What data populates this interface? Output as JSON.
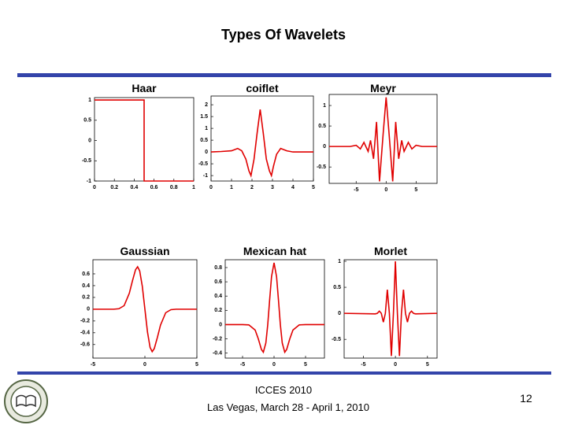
{
  "title": "Types Of Wavelets",
  "chart_data": [
    {
      "type": "line",
      "title": "Haar",
      "color": "#e00000",
      "x": [
        0,
        0.5,
        0.5,
        1
      ],
      "values": [
        1,
        1,
        -1,
        -1
      ],
      "xlim": [
        0,
        1
      ],
      "ylim": [
        -1,
        1.06
      ],
      "xticks": [
        0,
        0.2,
        0.4,
        0.6,
        0.8,
        1
      ],
      "yticks": [
        -1,
        -0.5,
        0,
        0.5,
        1
      ]
    },
    {
      "type": "line",
      "title": "coiflet",
      "color": "#e00000",
      "x": [
        0,
        0.5,
        1,
        1.3,
        1.5,
        1.7,
        1.85,
        1.95,
        2.1,
        2.25,
        2.4,
        2.55,
        2.7,
        2.85,
        2.95,
        3.05,
        3.2,
        3.4,
        3.7,
        4,
        4.5,
        5
      ],
      "values": [
        0,
        0.02,
        0.05,
        0.15,
        0.05,
        -0.3,
        -0.8,
        -1,
        -0.3,
        0.8,
        1.8,
        0.8,
        -0.3,
        -0.8,
        -1,
        -0.6,
        -0.1,
        0.15,
        0.05,
        0,
        0,
        0
      ],
      "xlim": [
        0,
        5
      ],
      "ylim": [
        -1.23,
        2.37
      ],
      "xticks": [
        0,
        1,
        2,
        3,
        4,
        5
      ],
      "yticks": [
        -1,
        -0.5,
        0,
        0.5,
        1,
        1.5,
        2
      ]
    },
    {
      "type": "line",
      "title": "Meyr",
      "color": "#e00000",
      "x": [
        -9.5,
        -6,
        -5,
        -4.3,
        -3.7,
        -3,
        -2.6,
        -2.1,
        -1.6,
        -1.1,
        -0.5,
        0,
        0.5,
        1.1,
        1.6,
        2.1,
        2.6,
        3,
        3.7,
        4.3,
        5,
        6,
        8.5
      ],
      "values": [
        0,
        0,
        0.03,
        -0.06,
        0.1,
        -0.12,
        0.15,
        -0.3,
        0.6,
        -0.85,
        0.3,
        1.2,
        0.3,
        -0.85,
        0.6,
        -0.3,
        0.15,
        -0.12,
        0.1,
        -0.06,
        0.03,
        0,
        0
      ],
      "xlim": [
        -9.5,
        8.5
      ],
      "ylim": [
        -0.9,
        1.27
      ],
      "xticks": [
        -5,
        0,
        5
      ],
      "yticks": [
        -0.5,
        0,
        0.5,
        1
      ]
    },
    {
      "type": "line",
      "title": "Gaussian",
      "color": "#e00000",
      "x": [
        -5,
        -3,
        -2.5,
        -2,
        -1.5,
        -1.2,
        -0.9,
        -0.7,
        -0.5,
        -0.25,
        0,
        0.25,
        0.5,
        0.7,
        0.9,
        1.2,
        1.5,
        2,
        2.5,
        3,
        5
      ],
      "values": [
        0,
        0,
        0.008,
        0.06,
        0.27,
        0.48,
        0.67,
        0.72,
        0.65,
        0.39,
        0,
        -0.39,
        -0.65,
        -0.72,
        -0.67,
        -0.48,
        -0.27,
        -0.06,
        -0.008,
        0,
        0
      ],
      "xlim": [
        -5,
        5
      ],
      "ylim": [
        -0.83,
        0.84
      ],
      "xticks": [
        -5,
        0,
        5
      ],
      "yticks": [
        -0.6,
        -0.4,
        -0.2,
        0,
        0.2,
        0.4,
        0.6
      ]
    },
    {
      "type": "line",
      "title": "Mexican hat",
      "color": "#e00000",
      "x": [
        -7.75,
        -5,
        -4,
        -3,
        -2.5,
        -2,
        -1.7,
        -1.3,
        -1,
        -0.7,
        -0.4,
        0,
        0.4,
        0.7,
        1,
        1.3,
        1.7,
        2,
        2.5,
        3,
        4,
        5,
        8
      ],
      "values": [
        0,
        0,
        -0.004,
        -0.077,
        -0.2,
        -0.35,
        -0.387,
        -0.257,
        0,
        0.346,
        0.672,
        0.867,
        0.672,
        0.346,
        0,
        -0.257,
        -0.387,
        -0.35,
        -0.2,
        -0.077,
        -0.004,
        0,
        0
      ],
      "xlim": [
        -7.75,
        8
      ],
      "ylim": [
        -0.47,
        0.91
      ],
      "xticks": [
        -5,
        0,
        5
      ],
      "yticks": [
        -0.4,
        -0.2,
        0,
        0.2,
        0.4,
        0.6,
        0.8
      ]
    },
    {
      "type": "line",
      "title": "Morlet",
      "color": "#e00000",
      "x": [
        -8,
        -3.14,
        -2.83,
        -2.51,
        -2.2,
        -1.88,
        -1.57,
        -1.26,
        -0.94,
        -0.63,
        -0.31,
        0,
        0.31,
        0.63,
        0.94,
        1.26,
        1.57,
        1.88,
        2.2,
        2.51,
        2.83,
        3.14,
        6.5
      ],
      "values": [
        0,
        -0.01,
        0,
        0.043,
        0,
        -0.169,
        0,
        0.454,
        0,
        -0.82,
        0,
        1,
        0,
        -0.82,
        0,
        0.454,
        0,
        -0.169,
        0,
        0.043,
        0,
        -0.01,
        0
      ],
      "xlim": [
        -8,
        6.5
      ],
      "ylim": [
        -0.86,
        1.03
      ],
      "xticks": [
        -5,
        0,
        5
      ],
      "yticks": [
        -0.5,
        0,
        0.5,
        1
      ]
    }
  ],
  "footer": {
    "event": "ICCES 2010",
    "dates": "Las Vegas, March 28 - April 1, 2010"
  },
  "page_number": 12
}
